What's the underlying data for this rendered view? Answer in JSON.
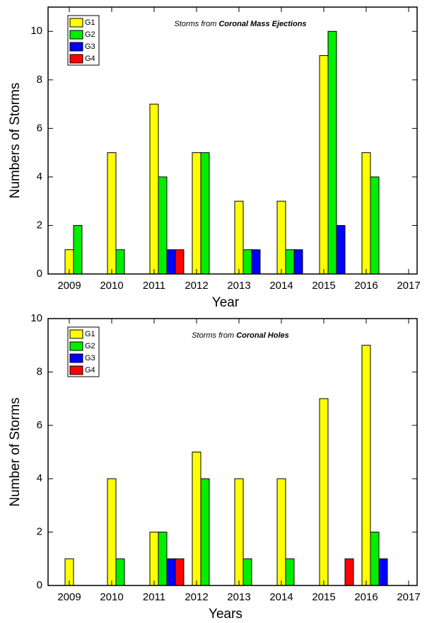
{
  "chart_data": [
    {
      "type": "bar",
      "annotation": {
        "text": "Storms from",
        "emphasis": "Coronal Mass Ejections"
      },
      "xlabel": "Year",
      "ylabel": "Numbers of Storms",
      "x": [
        2009,
        2010,
        2011,
        2012,
        2013,
        2014,
        2015,
        2016
      ],
      "series": [
        {
          "name": "G1",
          "color": "#ffff00",
          "values": [
            1,
            5,
            7,
            5,
            3,
            3,
            9,
            5
          ]
        },
        {
          "name": "G2",
          "color": "#00ee00",
          "values": [
            2,
            1,
            4,
            5,
            1,
            1,
            10,
            4
          ]
        },
        {
          "name": "G3",
          "color": "#0000ff",
          "values": [
            0,
            0,
            1,
            0,
            1,
            1,
            2,
            0
          ]
        },
        {
          "name": "G4",
          "color": "#ff0000",
          "values": [
            0,
            0,
            1,
            0,
            0,
            0,
            0,
            0
          ]
        }
      ],
      "xlim": [
        2008.5,
        2017.2
      ],
      "xticks": [
        2009,
        2010,
        2011,
        2012,
        2013,
        2014,
        2015,
        2016,
        2017
      ],
      "ylim": [
        0,
        11
      ],
      "yticks": [
        0,
        2,
        4,
        6,
        8,
        10
      ],
      "legend": "upper left"
    },
    {
      "type": "bar",
      "annotation": {
        "text": "Storms from",
        "emphasis": "Coronal Holes"
      },
      "xlabel": "Years",
      "ylabel": "Number of Storms",
      "x": [
        2009,
        2010,
        2011,
        2012,
        2013,
        2014,
        2015,
        2016
      ],
      "series": [
        {
          "name": "G1",
          "color": "#ffff00",
          "values": [
            1,
            4,
            2,
            5,
            4,
            4,
            7,
            9
          ]
        },
        {
          "name": "G2",
          "color": "#00ee00",
          "values": [
            0,
            1,
            2,
            4,
            1,
            1,
            0,
            2
          ]
        },
        {
          "name": "G3",
          "color": "#0000ff",
          "values": [
            0,
            0,
            1,
            0,
            0,
            0,
            0,
            1
          ]
        },
        {
          "name": "G4",
          "color": "#ff0000",
          "values": [
            0,
            0,
            1,
            0,
            0,
            0,
            1,
            0
          ]
        }
      ],
      "xlim": [
        2008.5,
        2017.2
      ],
      "xticks": [
        2009,
        2010,
        2011,
        2012,
        2013,
        2014,
        2015,
        2016,
        2017
      ],
      "ylim": [
        0,
        10
      ],
      "yticks": [
        0,
        2,
        4,
        6,
        8,
        10
      ],
      "legend": "upper left"
    }
  ]
}
